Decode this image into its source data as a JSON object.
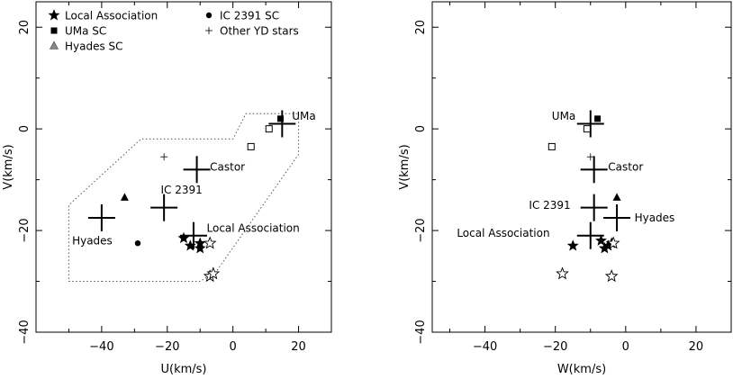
{
  "chart_data": [
    {
      "type": "scatter",
      "xlabel": "U(km/s)",
      "ylabel": "V(km/s)",
      "xlim": [
        -60,
        30
      ],
      "ylim": [
        -40,
        25
      ],
      "xticks": [
        -40,
        -20,
        0,
        20
      ],
      "yticks": [
        -40,
        -20,
        0,
        20
      ],
      "xtick_labels": [
        "−40",
        "−20",
        "0",
        "20"
      ],
      "ytick_labels": [
        "−40",
        "−20",
        "0",
        "20"
      ],
      "legend": [
        {
          "label": "Local Association",
          "symbol": "star-filled"
        },
        {
          "label": "UMa SC",
          "symbol": "square-filled"
        },
        {
          "label": "Hyades SC",
          "symbol": "triangle-filled"
        },
        {
          "label": "IC 2391 SC",
          "symbol": "circle-filled"
        },
        {
          "label": "Other YD stars",
          "symbol": "plus-small"
        }
      ],
      "centroids": [
        {
          "name": "UMa",
          "x": 15,
          "y": 1
        },
        {
          "name": "Castor",
          "x": -11,
          "y": -8
        },
        {
          "name": "IC 2391",
          "x": -21,
          "y": -15.5
        },
        {
          "name": "Hyades",
          "x": -40,
          "y": -17.5
        },
        {
          "name": "Local Association",
          "x": -12,
          "y": -21
        }
      ],
      "annotations": [
        {
          "text": "UMa",
          "x": 18,
          "y": 2.5
        },
        {
          "text": "Castor",
          "x": -7,
          "y": -7.5
        },
        {
          "text": "IC 2391",
          "x": -22,
          "y": -12
        },
        {
          "text": "Hyades",
          "x": -49,
          "y": -22
        },
        {
          "text": "Local Association",
          "x": -8,
          "y": -19.5
        }
      ],
      "series": [
        {
          "symbol": "star-filled",
          "points": [
            [
              -15,
              -21.5
            ],
            [
              -13,
              -23
            ],
            [
              -10,
              -23.5
            ],
            [
              -10,
              -22.5
            ]
          ]
        },
        {
          "symbol": "star-open",
          "points": [
            [
              -7,
              -22.5
            ],
            [
              -7,
              -29
            ],
            [
              -6,
              -28.5
            ]
          ]
        },
        {
          "symbol": "square-filled",
          "points": [
            [
              14.5,
              2
            ]
          ]
        },
        {
          "symbol": "square-open",
          "points": [
            [
              11,
              0
            ],
            [
              5.5,
              -3.5
            ]
          ]
        },
        {
          "symbol": "triangle-filled",
          "points": [
            [
              -33,
              -13.5
            ]
          ]
        },
        {
          "symbol": "circle-filled",
          "points": [
            [
              -29,
              -22.5
            ]
          ]
        },
        {
          "symbol": "plus-small",
          "points": [
            [
              -21,
              -5.5
            ]
          ]
        }
      ],
      "envelope": [
        [
          -40,
          -30
        ],
        [
          -10,
          -30
        ],
        [
          -5,
          -28
        ],
        [
          20,
          -5
        ],
        [
          20,
          3
        ],
        [
          4,
          3
        ],
        [
          0,
          -2
        ],
        [
          -28,
          -2
        ],
        [
          -50,
          -15
        ],
        [
          -50,
          -30
        ],
        [
          -40,
          -30
        ]
      ]
    },
    {
      "type": "scatter",
      "xlabel": "W(km/s)",
      "ylabel": "V(km/s)",
      "xlim": [
        -55,
        30
      ],
      "ylim": [
        -40,
        25
      ],
      "xticks": [
        -40,
        -20,
        0,
        20
      ],
      "yticks": [
        -40,
        -20,
        0,
        20
      ],
      "xtick_labels": [
        "−40",
        "−20",
        "0",
        "20"
      ],
      "ytick_labels": [
        "−40",
        "−20",
        "0",
        "20"
      ],
      "centroids": [
        {
          "name": "UMa",
          "x": -10,
          "y": 1
        },
        {
          "name": "Castor",
          "x": -9,
          "y": -8
        },
        {
          "name": "IC 2391",
          "x": -9,
          "y": -15.5
        },
        {
          "name": "Hyades",
          "x": -2.5,
          "y": -17.5
        },
        {
          "name": "Local Association",
          "x": -10,
          "y": -21
        }
      ],
      "annotations": [
        {
          "text": "UMa",
          "x": -21,
          "y": 2.5
        },
        {
          "text": "Castor",
          "x": -5,
          "y": -7.5
        },
        {
          "text": "IC 2391",
          "x": -27.5,
          "y": -15
        },
        {
          "text": "Hyades",
          "x": 2.5,
          "y": -17.5
        },
        {
          "text": "Local Association",
          "x": -48,
          "y": -20.5
        }
      ],
      "series": [
        {
          "symbol": "star-filled",
          "points": [
            [
              -15,
              -23
            ],
            [
              -7,
              -22
            ],
            [
              -6,
              -23.5
            ],
            [
              -5,
              -23
            ],
            [
              -4,
              -22.5
            ]
          ]
        },
        {
          "symbol": "star-open",
          "points": [
            [
              -3.5,
              -22.5
            ],
            [
              -18,
              -28.5
            ],
            [
              -4,
              -29
            ]
          ]
        },
        {
          "symbol": "square-filled",
          "points": [
            [
              -8,
              2
            ]
          ]
        },
        {
          "symbol": "square-open",
          "points": [
            [
              -21,
              -3.5
            ],
            [
              -11,
              0
            ]
          ]
        },
        {
          "symbol": "triangle-filled",
          "points": [
            [
              -2.5,
              -13.5
            ]
          ]
        },
        {
          "symbol": "plus-small",
          "points": [
            [
              -10,
              -5.5
            ]
          ]
        }
      ]
    }
  ]
}
